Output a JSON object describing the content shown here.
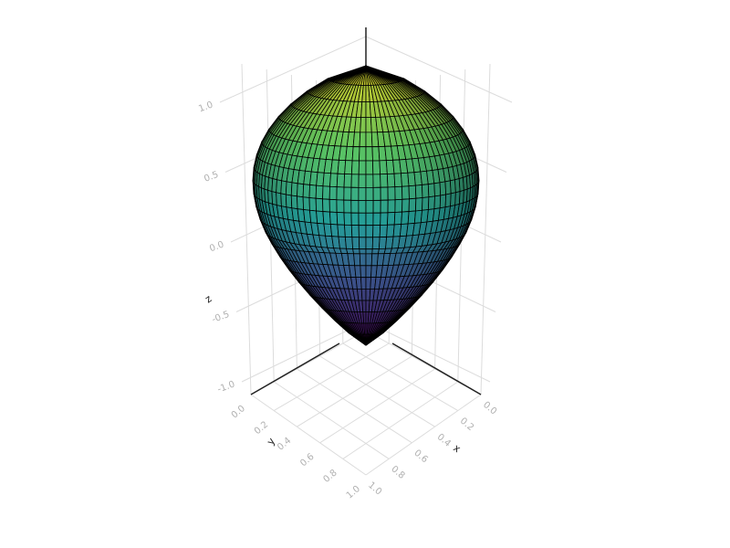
{
  "chart_data": {
    "type": "surface",
    "title": "",
    "xlabel": "x",
    "ylabel": "y",
    "zlabel": "z",
    "xlim": [
      0.0,
      1.0
    ],
    "ylim": [
      0.0,
      1.0
    ],
    "zlim": [
      -1.0,
      1.0
    ],
    "x_ticks": [
      "0.0",
      "0.2",
      "0.4",
      "0.6",
      "0.8",
      "1.0"
    ],
    "y_ticks": [
      "0.0",
      "0.2",
      "0.4",
      "0.6",
      "0.8",
      "1.0"
    ],
    "z_ticks": [
      "-1.0",
      "-0.5",
      "0.0",
      "0.5",
      "1.0"
    ],
    "colormap": "viridis",
    "grid": true,
    "surface_shape": "egg-shaped closed surface with wireframe mesh",
    "colors": {
      "grid": "#dcdcdc",
      "axis": "#222222",
      "mesh": "#000000"
    }
  }
}
